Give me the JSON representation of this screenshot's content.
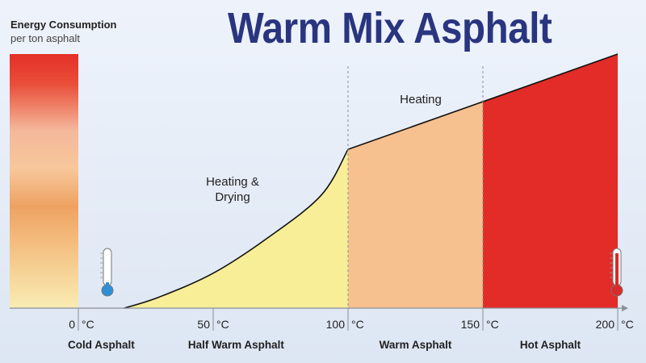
{
  "title": "Warm Mix Asphalt",
  "energy_axis": {
    "label": "Energy Consumption",
    "sublabel": "per ton asphalt"
  },
  "chart_data": {
    "type": "area",
    "x_unit": "°C",
    "xlim": [
      0,
      200
    ],
    "x_ticks": [
      0,
      50,
      100,
      150,
      200
    ],
    "x_tick_labels": [
      "0",
      "50",
      "100",
      "150",
      "200"
    ],
    "curve": [
      {
        "x": 17,
        "y": 0
      },
      {
        "x": 30,
        "y": 7
      },
      {
        "x": 50,
        "y": 22
      },
      {
        "x": 70,
        "y": 44
      },
      {
        "x": 90,
        "y": 71
      },
      {
        "x": 100,
        "y": 100
      },
      {
        "x": 150,
        "y": 130
      },
      {
        "x": 200,
        "y": 160
      }
    ],
    "regions": [
      {
        "name": "Cold Asphalt",
        "x_from": 0,
        "x_to": 17,
        "color": "#ffffff"
      },
      {
        "name": "Half Warm Asphalt",
        "x_from": 17,
        "x_to": 100,
        "color": "#f8ee98"
      },
      {
        "name": "Warm Asphalt",
        "x_from": 100,
        "x_to": 150,
        "color": "#f7c08f"
      },
      {
        "name": "Hot Asphalt",
        "x_from": 150,
        "x_to": 200,
        "color": "#e32b27"
      }
    ],
    "annotations": [
      {
        "text": "Heating &",
        "at_x": 65
      },
      {
        "text": "Drying",
        "at_x": 65
      },
      {
        "text": "Heating",
        "at_x": 120
      }
    ],
    "thermometers": [
      {
        "name": "cold",
        "at_x": 0,
        "color": "#2d8fd5"
      },
      {
        "name": "hot",
        "at_x": 200,
        "color": "#d82b2b"
      }
    ],
    "energy_bar_colors": [
      "#e42f27",
      "#f5c89e",
      "#ee9e5e",
      "#f8e3a8"
    ]
  }
}
